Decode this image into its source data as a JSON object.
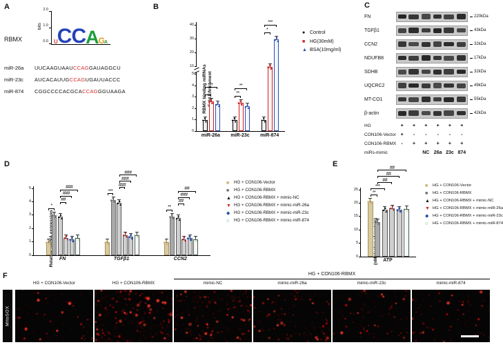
{
  "panelA": {
    "label": "A",
    "protein": "RBMX",
    "logo": {
      "ylabel": "bits",
      "yticks": [
        "2.0",
        "1.0",
        "0.0"
      ],
      "letters": [
        {
          "ch": "U",
          "color": "#c43c3c",
          "size": 8
        },
        {
          "ch": "C",
          "color": "#2743b8",
          "size": 30
        },
        {
          "ch": "C",
          "color": "#2743b8",
          "size": 30
        },
        {
          "ch": "A",
          "color": "#1f9e3e",
          "size": 27
        },
        {
          "ch": "G",
          "color": "#e59a1e",
          "size": 12
        },
        {
          "ch": "A",
          "color": "#1f9e3e",
          "size": 7
        }
      ]
    },
    "sequences": [
      {
        "name": "miR-26a",
        "pre": "UUCAAGUAAU",
        "motif": "CCAG",
        "post": "GAUAGGCU"
      },
      {
        "name": "miR-23c",
        "pre": "AUCACAUUG",
        "motif": "CCAG",
        "post": "UGAUUACCC"
      },
      {
        "name": "miR-874",
        "pre": "CGGCCCCACGCA",
        "motif": "CCAG",
        "post": "GGUAAGA"
      }
    ]
  },
  "panelB": {
    "label": "B",
    "chart": {
      "type": "bar",
      "ylabel": [
        "RBMX binding miRNAs",
        "Fold Enrichment"
      ],
      "categories": [
        "miR-26a",
        "miR-23c",
        "miR-874"
      ],
      "axis": {
        "breakAxis": true,
        "lowMax": 5,
        "highMin": 10,
        "highMax": 40,
        "lowFrac": 0.52,
        "gapFrac": 0.07,
        "topFrac": 0.97,
        "yticks": [
          0,
          1,
          2,
          3,
          4,
          5,
          10,
          20,
          30,
          40
        ]
      },
      "barW": 7,
      "barGap": 2,
      "sigStep": 11,
      "series": [
        {
          "name": "Control",
          "marker": "●",
          "color": "#000000",
          "fill": "#f0f0f0",
          "stroke": "#000000",
          "values": [
            1.0,
            1.0,
            1.0
          ]
        },
        {
          "name": "HG(30mM)",
          "marker": "■",
          "color": "#cf2020",
          "fill": "#fdf4f4",
          "stroke": "#cf2020",
          "values": [
            2.6,
            2.5,
            10.0
          ]
        },
        {
          "name": "BSA(10mg/ml)",
          "marker": "▲",
          "color": "#2b4fae",
          "fill": "#f2f5fc",
          "stroke": "#2b4fae",
          "values": [
            2.4,
            2.2,
            30.0
          ]
        }
      ],
      "sig": [
        {
          "g": 0,
          "a": 0,
          "b": 1,
          "label": "*",
          "lvl": 0
        },
        {
          "g": 0,
          "a": 0,
          "b": 2,
          "label": "**",
          "lvl": 1
        },
        {
          "g": 1,
          "a": 0,
          "b": 1,
          "label": "**",
          "lvl": 0
        },
        {
          "g": 1,
          "a": 0,
          "b": 2,
          "label": "**",
          "lvl": 1
        },
        {
          "g": 2,
          "a": 0,
          "b": 1,
          "label": "*",
          "lvl": 0
        },
        {
          "g": 2,
          "a": 0,
          "b": 2,
          "label": "***",
          "lvl": 1
        }
      ]
    }
  },
  "panelC": {
    "label": "C",
    "hg_label": "HG",
    "proteins": [
      {
        "name": "FN",
        "kda": "220kDa"
      },
      {
        "name": "TGFβ1",
        "kda": "43kDa"
      },
      {
        "name": "CCN2",
        "kda": "32kDa"
      },
      {
        "name": "NDUFB8",
        "kda": "17kDa"
      },
      {
        "name": "SDHB",
        "kda": "32kDa"
      },
      {
        "name": "UQCRC2",
        "kda": "49kDa"
      },
      {
        "name": "MT-CO1",
        "kda": "55kDa"
      },
      {
        "name": "β-actin",
        "kda": "42kDa"
      }
    ],
    "conditions": [
      {
        "name": "HG",
        "values": [
          "+",
          "+",
          "+",
          "+",
          "+",
          "+"
        ]
      },
      {
        "name": "CON106-Vector",
        "values": [
          "+",
          "-",
          "-",
          "-",
          "-",
          "-"
        ]
      },
      {
        "name": "CON106-RBMX",
        "values": [
          "-",
          "+",
          "+",
          "+",
          "+",
          "+"
        ]
      },
      {
        "name": "miRs-mimic",
        "values": [
          "",
          "",
          "NC",
          "26a",
          "23c",
          "874"
        ]
      }
    ]
  },
  "panelD": {
    "label": "D",
    "chart": {
      "type": "bar",
      "ylabel": [
        "Relative mRNA expression"
      ],
      "categories": [
        "FN",
        "TGFβ1",
        "CCN2"
      ],
      "axis": {
        "ymax": 5,
        "topFrac": 0.97,
        "yticks": [
          0,
          1,
          2,
          3,
          4,
          5
        ]
      },
      "barW": 7,
      "barGap": 1.5,
      "sigStep": 9,
      "xItalic": true,
      "series": [
        {
          "name": "HG + CON106-Vector",
          "marker": "■",
          "color": "#c9b078",
          "fill": "#d9c99f",
          "stroke": "#a3915c",
          "values": [
            1.0,
            1.0,
            1.0
          ]
        },
        {
          "name": "HG + CON106-RBMX",
          "marker": "■",
          "color": "#6f6f6f",
          "fill": "#a9a9a9",
          "stroke": "#6f6f6f",
          "values": [
            3.0,
            4.1,
            2.9
          ]
        },
        {
          "name": "HG + CON106-RBMX + mimic-NC",
          "marker": "▲",
          "color": "#111111",
          "fill": "#cfcfcf",
          "stroke": "#555555",
          "values": [
            2.9,
            3.9,
            2.8
          ]
        },
        {
          "name": "HG + CON106-RBMX + mimic-miR-26a",
          "marker": "▼",
          "color": "#cf2020",
          "fill": "#cfcfcf",
          "stroke": "#555555",
          "values": [
            1.3,
            1.5,
            1.2
          ]
        },
        {
          "name": "HG + CON106-RBMX + mimic-miR-23c",
          "marker": "◆",
          "color": "#2b4fae",
          "fill": "#cfcfcf",
          "stroke": "#555555",
          "values": [
            1.2,
            1.4,
            1.3
          ]
        },
        {
          "name": "HG + CON106-RBMX + mimic-miR-874",
          "marker": "○",
          "color": "#1f9e3e",
          "fill": "#f2f8f3",
          "stroke": "#555555",
          "values": [
            1.3,
            1.5,
            1.2
          ]
        }
      ],
      "sig": [
        {
          "g": 0,
          "a": 0,
          "b": 1,
          "label": "*",
          "lvl": 0
        },
        {
          "g": 0,
          "a": 2,
          "b": 3,
          "label": "##",
          "lvl": 1
        },
        {
          "g": 0,
          "a": 2,
          "b": 4,
          "label": "###",
          "lvl": 2
        },
        {
          "g": 0,
          "a": 2,
          "b": 5,
          "label": "###",
          "lvl": 3
        },
        {
          "g": 1,
          "a": 0,
          "b": 1,
          "label": "***",
          "lvl": 0
        },
        {
          "g": 1,
          "a": 2,
          "b": 3,
          "label": "###",
          "lvl": 1
        },
        {
          "g": 1,
          "a": 2,
          "b": 4,
          "label": "###",
          "lvl": 2
        },
        {
          "g": 1,
          "a": 2,
          "b": 5,
          "label": "###",
          "lvl": 3
        },
        {
          "g": 2,
          "a": 0,
          "b": 1,
          "label": "**",
          "lvl": 0
        },
        {
          "g": 2,
          "a": 2,
          "b": 3,
          "label": "##",
          "lvl": 1
        },
        {
          "g": 2,
          "a": 2,
          "b": 4,
          "label": "###",
          "lvl": 2
        },
        {
          "g": 2,
          "a": 2,
          "b": 5,
          "label": "##",
          "lvl": 3
        }
      ]
    }
  },
  "panelE": {
    "label": "E",
    "chart": {
      "type": "bar",
      "ylabel": [
        "ATP Prodution",
        "(nMoles/ug of protein)"
      ],
      "categories": [
        "ATP"
      ],
      "axis": {
        "ymax": 25,
        "topFrac": 0.97,
        "yticks": [
          0,
          5,
          10,
          15,
          20,
          25
        ]
      },
      "barW": 8,
      "barGap": 2.5,
      "sigStep": 9,
      "series": [
        {
          "name": "HG + CON106-Vector",
          "marker": "■",
          "color": "#c9b078",
          "fill": "#d9c99f",
          "stroke": "#a3915c",
          "values": [
            20.5
          ]
        },
        {
          "name": "HG + CON106-RBMX",
          "marker": "■",
          "color": "#6f6f6f",
          "fill": "#a9a9a9",
          "stroke": "#6f6f6f",
          "values": [
            13.0
          ]
        },
        {
          "name": "HG + CON106-RBMX + mimic-NC",
          "marker": "▲",
          "color": "#111111",
          "fill": "#cfcfcf",
          "stroke": "#555555",
          "values": [
            17.5
          ]
        },
        {
          "name": "HG + CON106-RBMX + mimic-miR-26a",
          "marker": "▼",
          "color": "#cf2020",
          "fill": "#cfcfcf",
          "stroke": "#555555",
          "values": [
            18.0
          ]
        },
        {
          "name": "HG + CON106-RBMX + mimic-miR-23c",
          "marker": "◆",
          "color": "#2b4fae",
          "fill": "#cfcfcf",
          "stroke": "#555555",
          "values": [
            17.5
          ]
        },
        {
          "name": "HG + CON106-RBMX + mimic-miR-874",
          "marker": "○",
          "color": "#1f9e3e",
          "fill": "#f2f8f3",
          "stroke": "#555555",
          "values": [
            17.8
          ]
        }
      ],
      "sig": [
        {
          "g": 0,
          "a": 0,
          "b": 1,
          "label": "**",
          "lvl": 0
        },
        {
          "g": 0,
          "a": 0,
          "b": 2,
          "label": "***",
          "lvl": 1
        },
        {
          "g": 0,
          "a": 1,
          "b": 3,
          "label": "##",
          "lvl": 2
        },
        {
          "g": 0,
          "a": 1,
          "b": 4,
          "label": "##",
          "lvl": 3
        },
        {
          "g": 0,
          "a": 1,
          "b": 5,
          "label": "##",
          "lvl": 4
        }
      ]
    }
  },
  "panelF": {
    "label": "F",
    "row_label": "MitoSOX",
    "group_header": "HG + CON106-RBMX",
    "images": [
      {
        "label": "HG + CON106-Vector",
        "density": 30
      },
      {
        "label": "HG + CON106-RBMX",
        "density": 110
      },
      {
        "label": "mimic-NC",
        "density": 85
      },
      {
        "label": "mimic-miR-26a",
        "density": 55
      },
      {
        "label": "mimic-miR-23c",
        "density": 45
      },
      {
        "label": "mimic-miR-874",
        "density": 40
      }
    ]
  }
}
